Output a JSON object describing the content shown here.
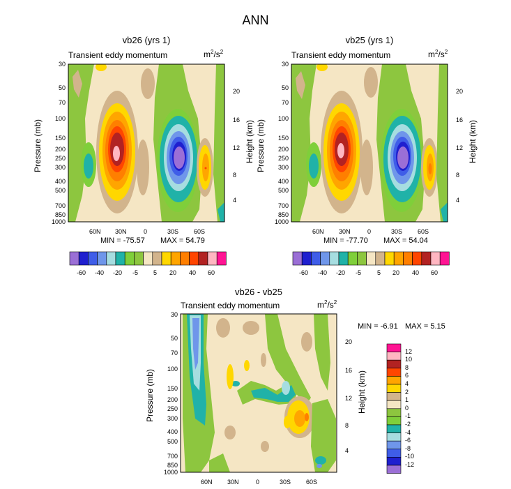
{
  "figure_title": "ANN",
  "colors": {
    "-60": "#9b6fd6",
    "-50": "#1f1fcf",
    "-40": "#3f5de8",
    "-30": "#6f96ea",
    "-20": "#a6dde0",
    "-10": "#20b2a8",
    "-5": "#7fcf3a",
    "-1": "#8dc63f",
    "0": "#f5e6c4",
    "5": "#d2b48c",
    "10": "#ffd700",
    "20": "#ffa500",
    "30": "#ff7f00",
    "40": "#ff4500",
    "50": "#b22222",
    "60": "#ffb6c1",
    "70": "#ff1493"
  },
  "chart_data": [
    {
      "id": "vb26",
      "type": "contour",
      "title": "vb26 (yrs 1)",
      "subtitle": "Transient eddy momentum",
      "units_base": "m",
      "units_sup1": "2",
      "units_mid": "/s",
      "units_sup2": "2",
      "xlabel": "",
      "ylabel": "Pressure (mb)",
      "ylabel_right": "Height (km)",
      "x_ticks": [
        "60N",
        "30N",
        "0",
        "30S",
        "60S"
      ],
      "y_ticks": [
        "30",
        "50",
        "70",
        "100",
        "150",
        "200",
        "250",
        "300",
        "400",
        "500",
        "700",
        "850",
        "1000"
      ],
      "y_ticks_right": [
        "20",
        "16",
        "12",
        "8",
        "4"
      ],
      "min_label": "MIN = -75.57",
      "max_label": "MAX = 54.79",
      "min": -75.57,
      "max": 54.79,
      "levels_labels": [
        "-60",
        "-40",
        "-20",
        "-5",
        "5",
        "20",
        "40",
        "60"
      ]
    },
    {
      "id": "vb25",
      "type": "contour",
      "title": "vb25 (yrs 1)",
      "subtitle": "Transient eddy momentum",
      "units_base": "m",
      "units_sup1": "2",
      "units_mid": "/s",
      "units_sup2": "2",
      "xlabel": "",
      "ylabel": "Pressure (mb)",
      "ylabel_right": "Height (km)",
      "x_ticks": [
        "60N",
        "30N",
        "0",
        "30S",
        "60S"
      ],
      "y_ticks": [
        "30",
        "50",
        "70",
        "100",
        "150",
        "200",
        "250",
        "300",
        "400",
        "500",
        "700",
        "850",
        "1000"
      ],
      "y_ticks_right": [
        "20",
        "16",
        "12",
        "8",
        "4"
      ],
      "min_label": "MIN = -77.70",
      "max_label": "MAX =  54.04",
      "min": -77.7,
      "max": 54.04,
      "levels_labels": [
        "-60",
        "-40",
        "-20",
        "-5",
        "5",
        "20",
        "40",
        "60"
      ]
    },
    {
      "id": "diff",
      "type": "contour",
      "title": "vb26 - vb25",
      "subtitle": "Transient eddy momentum",
      "units_base": "m",
      "units_sup1": "2",
      "units_mid": "/s",
      "units_sup2": "2",
      "xlabel": "",
      "ylabel": "Pressure (mb)",
      "ylabel_right": "Height (km)",
      "x_ticks": [
        "60N",
        "30N",
        "0",
        "30S",
        "60S"
      ],
      "y_ticks": [
        "30",
        "50",
        "70",
        "100",
        "150",
        "200",
        "250",
        "300",
        "400",
        "500",
        "700",
        "850",
        "1000"
      ],
      "y_ticks_right": [
        "20",
        "16",
        "12",
        "8",
        "4"
      ],
      "min_label": "MIN =  -6.91",
      "max_label": "MAX =   5.15",
      "min": -6.91,
      "max": 5.15,
      "levels_labels": [
        "12",
        "10",
        "8",
        "6",
        "4",
        "2",
        "1",
        "0",
        "-1",
        "-2",
        "-4",
        "-6",
        "-8",
        "-10",
        "-12"
      ]
    }
  ]
}
